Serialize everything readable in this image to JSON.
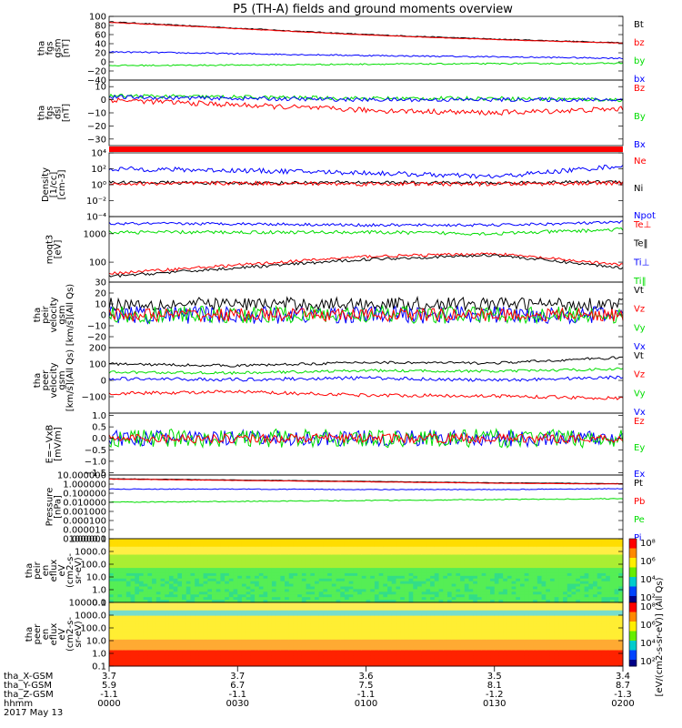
{
  "title": "P5 (TH-A) fields and ground moments overview",
  "colors": {
    "black": "#000000",
    "red": "#ff0000",
    "green": "#00dd00",
    "blue": "#0000ff"
  },
  "chart_data": [
    {
      "id": "fgs",
      "type": "line",
      "ylabel": [
        "tha",
        "fgs",
        "gsm",
        "[nT]"
      ],
      "ylim": [
        -40,
        100
      ],
      "yticks": [
        100,
        80,
        60,
        40,
        20,
        0,
        -20,
        -40
      ],
      "tick_labels": [
        "100",
        "80",
        "60",
        "40",
        "20",
        "0",
        "−20",
        "−40"
      ],
      "legend": [
        {
          "name": "Bt",
          "color": "black"
        },
        {
          "name": "bz",
          "color": "red"
        },
        {
          "name": "by",
          "color": "green"
        },
        {
          "name": "bx",
          "color": "blue"
        }
      ],
      "series": [
        {
          "name": "Bt",
          "color": "black",
          "x": [
            0,
            0.5,
            1,
            1.5,
            2
          ],
          "y": [
            88,
            74,
            60,
            50,
            42
          ]
        },
        {
          "name": "bz",
          "color": "red",
          "x": [
            0,
            0.5,
            1,
            1.5,
            2
          ],
          "y": [
            87,
            73,
            59,
            49,
            41
          ]
        },
        {
          "name": "bx",
          "color": "blue",
          "x": [
            0,
            0.5,
            1,
            1.5,
            2
          ],
          "y": [
            22,
            18,
            14,
            11,
            8
          ]
        },
        {
          "name": "by",
          "color": "green",
          "x": [
            0,
            0.5,
            1,
            1.5,
            2
          ],
          "y": [
            -8,
            -7,
            -5,
            -4,
            -3
          ]
        }
      ]
    },
    {
      "id": "fgs_dsl",
      "type": "line",
      "ylabel": [
        "tha",
        "fgs",
        "dsl",
        "[nT]"
      ],
      "ylim": [
        -35,
        15
      ],
      "yticks": [
        10,
        0,
        -10,
        -20,
        -30
      ],
      "tick_labels": [
        "10",
        "0",
        "−10",
        "−20",
        "−30"
      ],
      "legend": [
        {
          "name": "Bz",
          "color": "red"
        },
        {
          "name": "By",
          "color": "green"
        },
        {
          "name": "Bx",
          "color": "blue"
        }
      ],
      "series": [
        {
          "name": "By",
          "color": "green",
          "x": [
            0,
            0.5,
            1,
            1.5,
            2
          ],
          "y": [
            3,
            2,
            1,
            1,
            0
          ]
        },
        {
          "name": "Bx",
          "color": "blue",
          "x": [
            0,
            0.5,
            1,
            1.5,
            2
          ],
          "y": [
            2,
            1,
            0,
            0,
            0
          ]
        },
        {
          "name": "Bz",
          "color": "red",
          "x": [
            0,
            0.5,
            1,
            1.5,
            2
          ],
          "y": [
            0,
            -4,
            -8,
            -10,
            -7
          ]
        }
      ]
    },
    {
      "id": "density",
      "type": "line",
      "ylabel": [
        "Density",
        "[1/cc]",
        "[cm-3]"
      ],
      "scale": "log",
      "ylim": [
        -4,
        4
      ],
      "yticks": [
        4,
        2,
        0,
        -2,
        -4
      ],
      "tick_labels": [
        "10⁴",
        "10²",
        "10⁰",
        "10⁻²",
        "10⁻⁴"
      ],
      "legend": [
        {
          "name": "Ne",
          "color": "red"
        },
        {
          "name": "Ni",
          "color": "black"
        },
        {
          "name": "Npot",
          "color": "blue"
        }
      ],
      "series": [
        {
          "name": "Npot",
          "color": "blue",
          "x": [
            0,
            0.5,
            1,
            1.5,
            2
          ],
          "y": [
            2,
            1.8,
            1.5,
            1,
            2.4
          ]
        },
        {
          "name": "Ni",
          "color": "black",
          "x": [
            0,
            0.5,
            1,
            1.5,
            2
          ],
          "y": [
            0.3,
            0.2,
            0.3,
            0.2,
            0.4
          ]
        },
        {
          "name": "Ne",
          "color": "red",
          "x": [
            0,
            0.5,
            1,
            1.5,
            2
          ],
          "y": [
            0.1,
            0.2,
            0.1,
            0.1,
            0.2
          ]
        }
      ]
    },
    {
      "id": "temp",
      "type": "line",
      "ylabel": [
        "moqt3",
        "[eV]"
      ],
      "scale": "log",
      "ylim": [
        1.3,
        3.6
      ],
      "yticks": [
        3,
        2
      ],
      "tick_labels": [
        "1000",
        "100"
      ],
      "legend": [
        {
          "name": "Te⊥",
          "color": "red"
        },
        {
          "name": "Te‖",
          "color": "black"
        },
        {
          "name": "Ti⊥",
          "color": "blue"
        },
        {
          "name": "Ti‖",
          "color": "green"
        }
      ],
      "series": [
        {
          "name": "Ti⊥",
          "color": "blue",
          "x": [
            0,
            0.5,
            1,
            1.5,
            2
          ],
          "y": [
            3.35,
            3.35,
            3.3,
            3.3,
            3.4
          ]
        },
        {
          "name": "Ti‖",
          "color": "green",
          "x": [
            0,
            0.5,
            1,
            1.5,
            2
          ],
          "y": [
            3.05,
            3.05,
            3.05,
            3.0,
            3.15
          ]
        },
        {
          "name": "Te⊥",
          "color": "red",
          "x": [
            0,
            0.5,
            1,
            1.5,
            2
          ],
          "y": [
            1.6,
            1.9,
            2.2,
            2.3,
            1.9
          ]
        },
        {
          "name": "Te‖",
          "color": "black",
          "x": [
            0,
            0.5,
            1,
            1.5,
            2
          ],
          "y": [
            1.5,
            1.8,
            2.1,
            2.25,
            1.8
          ]
        }
      ]
    },
    {
      "id": "pei_vel",
      "type": "line",
      "ylabel": [
        "tha",
        "peir",
        "velocity",
        "gsm",
        "[km/s](All Qs)"
      ],
      "ylim": [
        -30,
        30
      ],
      "yticks": [
        30,
        20,
        10,
        0,
        -10,
        -20
      ],
      "tick_labels": [
        "30",
        "20",
        "10",
        "0",
        "−10",
        "−20"
      ],
      "legend": [
        {
          "name": "Vt",
          "color": "black"
        },
        {
          "name": "Vz",
          "color": "red"
        },
        {
          "name": "Vy",
          "color": "green"
        },
        {
          "name": "Vx",
          "color": "blue"
        }
      ],
      "series": [
        {
          "name": "Vt",
          "color": "black",
          "x": [
            0,
            0.5,
            1,
            1.5,
            2
          ],
          "y": [
            10,
            10,
            10,
            10,
            10
          ]
        },
        {
          "name": "Vx",
          "color": "blue",
          "x": [
            0,
            0.5,
            1,
            1.5,
            2
          ],
          "y": [
            0,
            0,
            0,
            0,
            0
          ]
        },
        {
          "name": "Vy",
          "color": "green",
          "x": [
            0,
            0.5,
            1,
            1.5,
            2
          ],
          "y": [
            0,
            0,
            0,
            0,
            0
          ]
        },
        {
          "name": "Vz",
          "color": "red",
          "x": [
            0,
            0.5,
            1,
            1.5,
            2
          ],
          "y": [
            0,
            0,
            0,
            0,
            0
          ]
        }
      ]
    },
    {
      "id": "pee_vel",
      "type": "line",
      "ylabel": [
        "tha",
        "peer",
        "velocity",
        "gsm",
        "[km/s](All Qs)"
      ],
      "ylim": [
        -200,
        200
      ],
      "yticks": [
        200,
        100,
        0,
        -100
      ],
      "tick_labels": [
        "200",
        "100",
        "0",
        "−100"
      ],
      "legend": [
        {
          "name": "Vt",
          "color": "black"
        },
        {
          "name": "Vz",
          "color": "red"
        },
        {
          "name": "Vy",
          "color": "green"
        },
        {
          "name": "Vx",
          "color": "blue"
        }
      ],
      "series": [
        {
          "name": "Vt",
          "color": "black",
          "x": [
            0,
            0.5,
            1,
            1.5,
            2
          ],
          "y": [
            100,
            90,
            110,
            105,
            140
          ]
        },
        {
          "name": "Vy",
          "color": "green",
          "x": [
            0,
            0.5,
            1,
            1.5,
            2
          ],
          "y": [
            50,
            45,
            60,
            55,
            70
          ]
        },
        {
          "name": "Vx",
          "color": "blue",
          "x": [
            0,
            0.5,
            1,
            1.5,
            2
          ],
          "y": [
            10,
            5,
            15,
            0,
            20
          ]
        },
        {
          "name": "Vz",
          "color": "red",
          "x": [
            0,
            0.5,
            1,
            1.5,
            2
          ],
          "y": [
            -80,
            -70,
            -90,
            -95,
            -110
          ]
        }
      ]
    },
    {
      "id": "efield",
      "type": "line",
      "ylabel": [
        "E=−VxB",
        "[mV/m]"
      ],
      "ylim": [
        -1.6,
        1.1
      ],
      "yticks": [
        1.0,
        0.5,
        0,
        -0.5,
        -1.0,
        -1.5
      ],
      "tick_labels": [
        "1.0",
        "0.5",
        "0.0",
        "−0.5",
        "−1.0",
        "−1.5"
      ],
      "legend": [
        {
          "name": "Ez",
          "color": "red"
        },
        {
          "name": "Ey",
          "color": "green"
        },
        {
          "name": "Ex",
          "color": "blue"
        }
      ],
      "series": [
        {
          "name": "Ex",
          "color": "blue",
          "x": [
            0,
            0.5,
            1,
            1.5,
            2
          ],
          "y": [
            0,
            0,
            0,
            0,
            0
          ]
        },
        {
          "name": "Ey",
          "color": "green",
          "x": [
            0,
            0.5,
            1,
            1.5,
            2
          ],
          "y": [
            0,
            0,
            0,
            0,
            0
          ]
        },
        {
          "name": "Ez",
          "color": "red",
          "x": [
            0,
            0.5,
            1,
            1.5,
            2
          ],
          "y": [
            0,
            0,
            0,
            0,
            0
          ]
        }
      ]
    },
    {
      "id": "pressure",
      "type": "line",
      "ylabel": [
        "Pressure",
        "[nPa]"
      ],
      "scale": "log",
      "ylim": [
        -6,
        1
      ],
      "yticks": [
        1,
        0,
        -1,
        -2,
        -3,
        -4,
        -5,
        -6
      ],
      "tick_labels": [
        "10.000000",
        "1.000000",
        "0.100000",
        "0.010000",
        "0.001000",
        "0.000100",
        "0.000010",
        "0.000001"
      ],
      "legend": [
        {
          "name": "Pt",
          "color": "black"
        },
        {
          "name": "Pb",
          "color": "red"
        },
        {
          "name": "Pe",
          "color": "green"
        },
        {
          "name": "Pi",
          "color": "blue"
        }
      ],
      "series": [
        {
          "name": "Pt",
          "color": "black",
          "x": [
            0,
            0.5,
            1,
            1.5,
            2
          ],
          "y": [
            0.6,
            0.45,
            0.3,
            0.15,
            0.05
          ]
        },
        {
          "name": "Pb",
          "color": "red",
          "x": [
            0,
            0.5,
            1,
            1.5,
            2
          ],
          "y": [
            0.55,
            0.4,
            0.25,
            0.1,
            0.0
          ]
        },
        {
          "name": "Pi",
          "color": "blue",
          "x": [
            0,
            0.5,
            1,
            1.5,
            2
          ],
          "y": [
            -0.55,
            -0.55,
            -0.6,
            -0.6,
            -0.5
          ]
        },
        {
          "name": "Pe",
          "color": "green",
          "x": [
            0,
            0.5,
            1,
            1.5,
            2
          ],
          "y": [
            -2.0,
            -1.9,
            -1.8,
            -1.7,
            -1.6
          ]
        }
      ]
    },
    {
      "id": "peir_spec",
      "type": "heatmap",
      "ylabel": [
        "tha",
        "peir",
        "en",
        "eflux",
        "eV",
        "(cm2-s-",
        "sr-eV)"
      ],
      "ylim": [
        -1,
        4
      ],
      "yticks": [
        4,
        3,
        2,
        1,
        0,
        -1
      ],
      "tick_labels": [
        "10000.0",
        "1000.0",
        "100.0",
        "10.0",
        "1.0",
        "0.1"
      ],
      "colorbar": {
        "label": "[eV/(cm2-s-sr-eV)] (All Qs)",
        "tick_labels": [
          "10⁸",
          "10⁶",
          "10⁴",
          "10²"
        ]
      }
    },
    {
      "id": "peer_spec",
      "type": "heatmap",
      "ylabel": [
        "tha",
        "peer",
        "en",
        "eflux",
        "eV",
        "(cm2-s-",
        "sr-eV)"
      ],
      "ylim": [
        -1,
        4
      ],
      "yticks": [
        4,
        3,
        2,
        1,
        0,
        -1
      ],
      "tick_labels": [
        "10000.0",
        "1000.0",
        "100.0",
        "10.0",
        "1.0",
        "0.1"
      ],
      "colorbar": {
        "tick_labels": [
          "10⁸",
          "10⁶",
          "10⁴",
          "10²"
        ]
      }
    }
  ],
  "colorbar_label": "[eV/(cm2-s-sr-eV)] (All Qs)",
  "xaxis": {
    "rows": [
      {
        "label": "tha_X-GSM",
        "values": [
          "3.7",
          "3.7",
          "3.6",
          "3.5",
          "3.4"
        ]
      },
      {
        "label": "tha_Y-GSM",
        "values": [
          "5.9",
          "6.7",
          "7.5",
          "8.1",
          "8.7"
        ]
      },
      {
        "label": "tha_Z-GSM",
        "values": [
          "-1.1",
          "-1.1",
          "-1.1",
          "-1.2",
          "-1.3"
        ]
      },
      {
        "label": "hhmm",
        "values": [
          "0000",
          "0030",
          "0100",
          "0130",
          "0200"
        ]
      }
    ],
    "date": "2017 May 13"
  }
}
